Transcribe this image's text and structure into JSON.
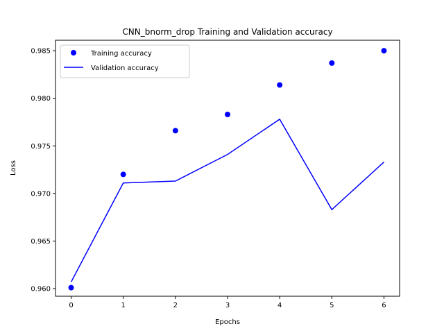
{
  "chart_data": {
    "type": "line",
    "title": "CNN_bnorm_drop Training and Validation accuracy",
    "xlabel": "Epochs",
    "ylabel": "Loss",
    "xlim": [
      -0.3,
      6.3
    ],
    "ylim": [
      0.9592,
      0.9861
    ],
    "xticks": [
      0,
      1,
      2,
      3,
      4,
      5,
      6
    ],
    "xtick_labels": [
      "0",
      "1",
      "2",
      "3",
      "4",
      "5",
      "6"
    ],
    "yticks": [
      0.96,
      0.965,
      0.97,
      0.975,
      0.98,
      0.985
    ],
    "ytick_labels": [
      "0.960",
      "0.965",
      "0.970",
      "0.975",
      "0.980",
      "0.985"
    ],
    "grid": false,
    "legend_position": "upper-left",
    "series": [
      {
        "name": "Training accuracy",
        "style": "markers",
        "color": "#0000ff",
        "x": [
          0,
          1,
          2,
          3,
          4,
          5,
          6
        ],
        "y": [
          0.9601,
          0.972,
          0.9766,
          0.9783,
          0.9814,
          0.9837,
          0.985
        ]
      },
      {
        "name": "Validation accuracy",
        "style": "line",
        "color": "#0000ff",
        "x": [
          0,
          1,
          2,
          3,
          4,
          5,
          6
        ],
        "y": [
          0.9607,
          0.9711,
          0.9713,
          0.9741,
          0.9778,
          0.9683,
          0.9733
        ]
      }
    ]
  }
}
